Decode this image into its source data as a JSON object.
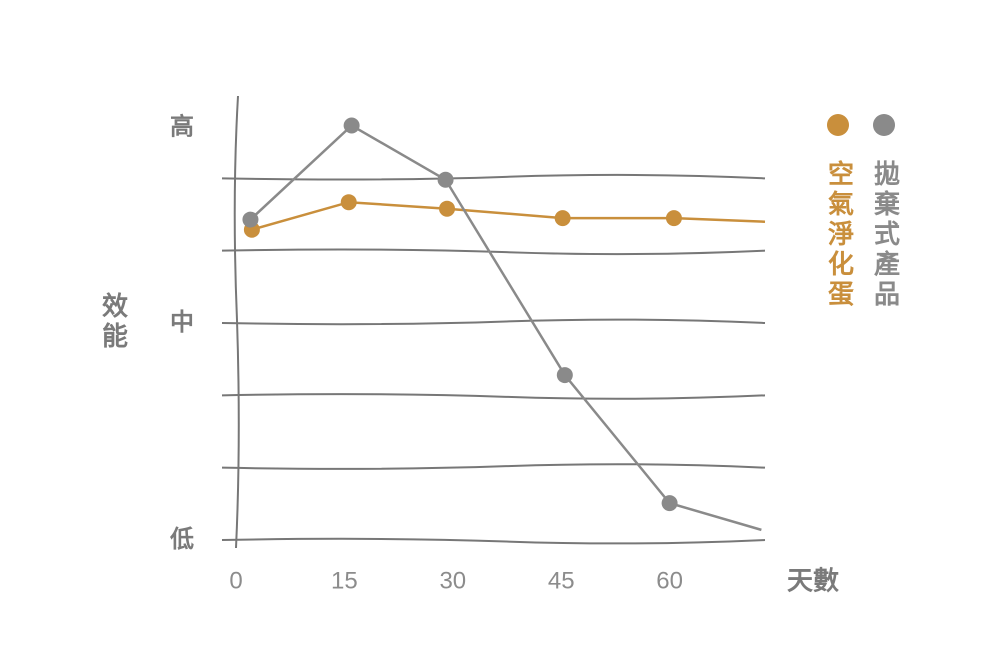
{
  "chart_data": {
    "type": "line",
    "y_label": "效能",
    "x_label": "天數",
    "xlim": [
      0,
      73.2
    ],
    "xticks": [
      0,
      15,
      30,
      45,
      60
    ],
    "ylim": [
      0,
      6
    ],
    "yticks": [
      {
        "value": 0,
        "label": "低"
      },
      {
        "value": 3,
        "label": "中"
      },
      {
        "value": 5.7,
        "label": "高"
      }
    ],
    "ygrid": [
      0,
      1,
      2,
      3,
      4,
      5
    ],
    "series": [
      {
        "name": "空氣淨化蛋",
        "color": "#c98f3c",
        "x": [
          2.2,
          15.6,
          29.2,
          45.2,
          60.6,
          73.2
        ],
        "values": [
          4.29,
          4.67,
          4.58,
          4.45,
          4.45,
          4.4
        ],
        "markers": [
          true,
          true,
          true,
          true,
          true,
          false
        ]
      },
      {
        "name": "拋棄式產品",
        "color": "#8a8a8a",
        "x": [
          2,
          16,
          29,
          45.5,
          60,
          72.7
        ],
        "values": [
          4.43,
          5.73,
          4.98,
          2.28,
          0.51,
          0.14
        ],
        "markers": [
          true,
          true,
          true,
          true,
          true,
          false
        ]
      }
    ]
  }
}
